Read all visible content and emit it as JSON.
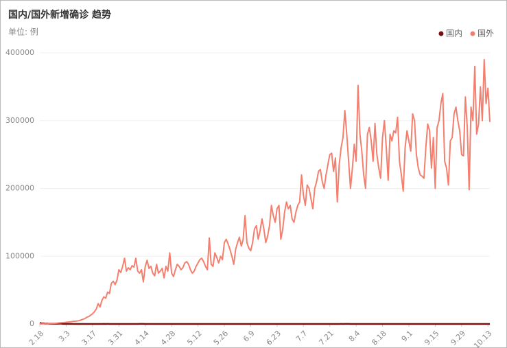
{
  "chart_data": {
    "type": "line",
    "title": "国内/国外新增确诊 趋势",
    "subtitle": "单位: 例",
    "categories": [
      "2.18",
      null,
      null,
      null,
      null,
      null,
      null,
      null,
      null,
      null,
      null,
      null,
      null,
      null,
      "3.3",
      null,
      null,
      null,
      null,
      null,
      null,
      null,
      null,
      null,
      null,
      null,
      null,
      null,
      "3.17",
      null,
      null,
      null,
      null,
      null,
      null,
      null,
      null,
      null,
      null,
      null,
      null,
      null,
      "3.31",
      null,
      null,
      null,
      null,
      null,
      null,
      null,
      null,
      null,
      null,
      null,
      null,
      null,
      "4.14",
      null,
      null,
      null,
      null,
      null,
      null,
      null,
      null,
      null,
      null,
      null,
      null,
      null,
      "4.28",
      null,
      null,
      null,
      null,
      null,
      null,
      null,
      null,
      null,
      null,
      null,
      null,
      null,
      "5.12",
      null,
      null,
      null,
      null,
      null,
      null,
      null,
      null,
      null,
      null,
      null,
      null,
      null,
      "5.26",
      null,
      null,
      null,
      null,
      null,
      null,
      null,
      null,
      null,
      null,
      null,
      null,
      null,
      "6.9",
      null,
      null,
      null,
      null,
      null,
      null,
      null,
      null,
      null,
      null,
      null,
      null,
      null,
      "6.23",
      null,
      null,
      null,
      null,
      null,
      null,
      null,
      null,
      null,
      null,
      null,
      null,
      null,
      "7.7",
      null,
      null,
      null,
      null,
      null,
      null,
      null,
      null,
      null,
      null,
      null,
      null,
      null,
      "7.21",
      null,
      null,
      null,
      null,
      null,
      null,
      null,
      null,
      null,
      null,
      null,
      null,
      null,
      "8.4",
      null,
      null,
      null,
      null,
      null,
      null,
      null,
      null,
      null,
      null,
      null,
      null,
      null,
      "8.18",
      null,
      null,
      null,
      null,
      null,
      null,
      null,
      null,
      null,
      null,
      null,
      null,
      null,
      "9.1",
      null,
      null,
      null,
      null,
      null,
      null,
      null,
      null,
      null,
      null,
      null,
      null,
      null,
      "9.15",
      null,
      null,
      null,
      null,
      null,
      null,
      null,
      null,
      null,
      null,
      null,
      null,
      null,
      "9.29",
      null,
      null,
      null,
      null,
      null,
      null,
      null,
      null,
      null,
      null,
      null,
      null,
      null,
      "10.13",
      null
    ],
    "series": [
      {
        "name": "国内",
        "color": "#7a0f0f",
        "values": [
          1749,
          820,
          889,
          397,
          648,
          409,
          508,
          406,
          433,
          327,
          427,
          573,
          202,
          125,
          119,
          139,
          143,
          99,
          44,
          40,
          19,
          24,
          15,
          8,
          11,
          20,
          16,
          21,
          39,
          34,
          39,
          41,
          46,
          39,
          78,
          47,
          67,
          55,
          54,
          45,
          31,
          48,
          36,
          35,
          31,
          19,
          30,
          39,
          32,
          62,
          63,
          42,
          46,
          99,
          108,
          89,
          46,
          26,
          27,
          16,
          27,
          8,
          12,
          30,
          11,
          10,
          6,
          12,
          3,
          6,
          22,
          4,
          12,
          1,
          2,
          3,
          1,
          2,
          2,
          4,
          1,
          2,
          14,
          7,
          3,
          2,
          4,
          8,
          5,
          7,
          6,
          6,
          5,
          2,
          4,
          3,
          11,
          7,
          1,
          2,
          2,
          3,
          4,
          2,
          5,
          2,
          6,
          3,
          5,
          3,
          6,
          3,
          3,
          3,
          11,
          11,
          57,
          49,
          40,
          32,
          44,
          25,
          32,
          26,
          26,
          18,
          22,
          19,
          12,
          21,
          14,
          19,
          12,
          19,
          3,
          3,
          5,
          8,
          3,
          8,
          5,
          7,
          7,
          14,
          8,
          19,
          8,
          14,
          11,
          22,
          16,
          28,
          22,
          11,
          14,
          22,
          21,
          34,
          46,
          61,
          68,
          64,
          101,
          112,
          127,
          45,
          49,
          43,
          36,
          45,
          38,
          37,
          23,
          22,
          49,
          27,
          19,
          34,
          24,
          22,
          22,
          13,
          22,
          13,
          22,
          13,
          15,
          20,
          12,
          14,
          9,
          9,
          11,
          8,
          3,
          10,
          9,
          5,
          11,
          10,
          10,
          12,
          6,
          7,
          10,
          11,
          10,
          6,
          14,
          10,
          8,
          7,
          32,
          14,
          7,
          24,
          14,
          10,
          6,
          20,
          12,
          8,
          11,
          10,
          21,
          15,
          25,
          17,
          21,
          20,
          12,
          17,
          18,
          9,
          18,
          11,
          27,
          24,
          13,
          10
        ]
      },
      {
        "name": "国外",
        "color": "#f47f6e",
        "values": [
          100,
          150,
          200,
          300,
          400,
          600,
          800,
          900,
          1000,
          1200,
          1500,
          1800,
          2000,
          2200,
          2500,
          2800,
          3000,
          3500,
          4000,
          4200,
          4500,
          5000,
          6000,
          7000,
          8000,
          10000,
          11000,
          13000,
          15000,
          18000,
          22000,
          30000,
          25000,
          35000,
          40000,
          38000,
          47000,
          45000,
          60000,
          63000,
          58000,
          65000,
          80000,
          76000,
          85000,
          97000,
          78000,
          83000,
          80000,
          86000,
          84000,
          97000,
          78000,
          75000,
          80000,
          62000,
          85000,
          94000,
          82000,
          85000,
          75000,
          71000,
          88000,
          75000,
          78000,
          82000,
          68000,
          85000,
          78000,
          105000,
          75000,
          70000,
          80000,
          88000,
          85000,
          80000,
          83000,
          90000,
          92000,
          88000,
          80000,
          75000,
          78000,
          85000,
          90000,
          95000,
          97000,
          92000,
          85000,
          80000,
          127000,
          88000,
          85000,
          105000,
          98000,
          90000,
          100000,
          95000,
          120000,
          125000,
          118000,
          110000,
          100000,
          88000,
          110000,
          120000,
          128000,
          115000,
          125000,
          160000,
          120000,
          112000,
          108000,
          120000,
          140000,
          145000,
          125000,
          138000,
          155000,
          140000,
          120000,
          130000,
          145000,
          175000,
          160000,
          150000,
          170000,
          175000,
          125000,
          140000,
          165000,
          180000,
          170000,
          175000,
          155000,
          150000,
          165000,
          175000,
          180000,
          220000,
          190000,
          175000,
          205000,
          200000,
          185000,
          170000,
          200000,
          210000,
          225000,
          228000,
          210000,
          200000,
          220000,
          235000,
          250000,
          252000,
          225000,
          245000,
          180000,
          235000,
          260000,
          275000,
          315000,
          280000,
          240000,
          200000,
          230000,
          265000,
          240000,
          352000,
          280000,
          255000,
          220000,
          200000,
          280000,
          290000,
          270000,
          240000,
          296000,
          250000,
          230000,
          215000,
          275000,
          300000,
          260000,
          212000,
          280000,
          270000,
          285000,
          282000,
          305000,
          240000,
          220000,
          196000,
          260000,
          285000,
          270000,
          255000,
          310000,
          300000,
          250000,
          230000,
          220000,
          218000,
          215000,
          260000,
          295000,
          285000,
          230000,
          275000,
          200000,
          290000,
          300000,
          325000,
          340000,
          240000,
          230000,
          205000,
          270000,
          275000,
          310000,
          320000,
          300000,
          285000,
          250000,
          248000,
          335000,
          290000,
          198000,
          320000,
          300000,
          380000,
          280000,
          295000,
          350000,
          300000,
          390000,
          325000,
          348000,
          298000
        ]
      }
    ],
    "ylim": [
      0,
      400000
    ],
    "yticks": [
      0,
      100000,
      200000,
      300000,
      400000
    ],
    "grid": true,
    "legend": "top-right"
  }
}
